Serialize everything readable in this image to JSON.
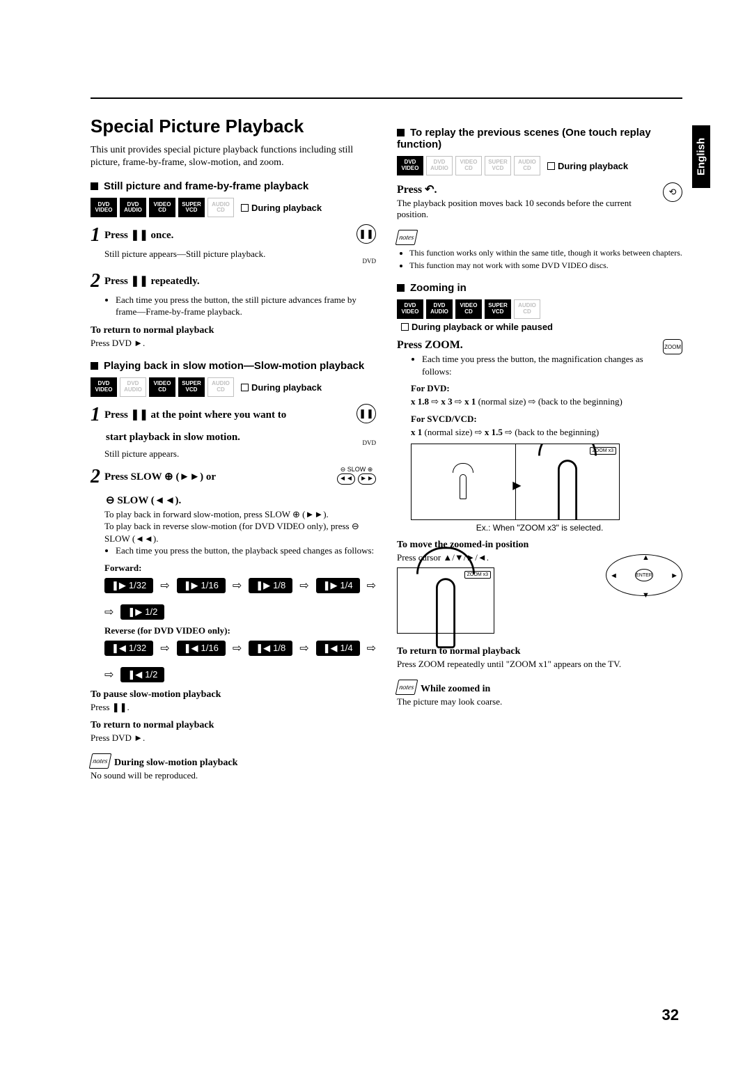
{
  "side_tab": "English",
  "page_number": "32",
  "title": "Special Picture Playback",
  "intro": "This unit provides special picture playback functions including still picture, frame-by-frame, slow-motion, and zoom.",
  "sections": {
    "still": {
      "heading": "Still picture and frame-by-frame playback",
      "context": "During playback",
      "badges": [
        {
          "t": "DVD",
          "b": "VIDEO",
          "on": true
        },
        {
          "t": "DVD",
          "b": "AUDIO",
          "on": true
        },
        {
          "t": "VIDEO",
          "b": "CD",
          "on": true
        },
        {
          "t": "SUPER",
          "b": "VCD",
          "on": true
        },
        {
          "t": "AUDIO",
          "b": "CD",
          "on": false
        }
      ],
      "step1": "Press ❚❚ once.",
      "step1_body": "Still picture appears—Still picture playback.",
      "step2": "Press ❚❚ repeatedly.",
      "step2_body": "Each time you press the button, the still picture advances frame by frame—Frame-by-frame playback.",
      "return_h": "To return to normal playback",
      "return_b": "Press DVD ►."
    },
    "slowmo": {
      "heading": "Playing back in slow motion—Slow-motion playback",
      "context": "During playback",
      "badges": [
        {
          "t": "DVD",
          "b": "VIDEO",
          "on": true
        },
        {
          "t": "DVD",
          "b": "AUDIO",
          "on": false
        },
        {
          "t": "VIDEO",
          "b": "CD",
          "on": true
        },
        {
          "t": "SUPER",
          "b": "VCD",
          "on": true
        },
        {
          "t": "AUDIO",
          "b": "CD",
          "on": false
        }
      ],
      "step1_a": "Press ❚❚ at the point where you want to",
      "step1_b": "start playback in slow motion.",
      "step1_body": "Still picture appears.",
      "step2_a": "Press SLOW ⊕ (►►) or",
      "step2_b": "⊖ SLOW (◄◄).",
      "step2_body_1": "To play back in forward slow-motion, press SLOW ⊕ (►►).",
      "step2_body_2": "To play back in reverse slow-motion (for DVD VIDEO only), press ⊖ SLOW (◄◄).",
      "step2_body_3": "Each time you press the button, the playback speed changes as follows:",
      "fwd_label": "Forward:",
      "fwd_values": [
        "1/32",
        "1/16",
        "1/8",
        "1/4",
        "1/2"
      ],
      "rev_label": "Reverse (for DVD VIDEO only):",
      "rev_values": [
        "1/32",
        "1/16",
        "1/8",
        "1/4",
        "1/2"
      ],
      "pause_h": "To pause slow-motion playback",
      "pause_b": "Press ❚❚.",
      "return_h": "To return to normal playback",
      "return_b": "Press DVD ►.",
      "note_h": "During slow-motion playback",
      "note_b": "No sound will be reproduced."
    },
    "replay": {
      "heading": "To replay the previous scenes (One touch replay function)",
      "context": "During playback",
      "badges": [
        {
          "t": "DVD",
          "b": "VIDEO",
          "on": true
        },
        {
          "t": "DVD",
          "b": "AUDIO",
          "on": false
        },
        {
          "t": "VIDEO",
          "b": "CD",
          "on": false
        },
        {
          "t": "SUPER",
          "b": "VCD",
          "on": false
        },
        {
          "t": "AUDIO",
          "b": "CD",
          "on": false
        }
      ],
      "press": "Press ↶.",
      "body": "The playback position moves back 10 seconds before the current position.",
      "notes": [
        "This function works only within the same title, though it works between chapters.",
        "This function may not work with some DVD VIDEO discs."
      ]
    },
    "zoom": {
      "heading": "Zooming in",
      "context": "During playback or while paused",
      "badges": [
        {
          "t": "DVD",
          "b": "VIDEO",
          "on": true
        },
        {
          "t": "DVD",
          "b": "AUDIO",
          "on": true
        },
        {
          "t": "VIDEO",
          "b": "CD",
          "on": true
        },
        {
          "t": "SUPER",
          "b": "VCD",
          "on": true
        },
        {
          "t": "AUDIO",
          "b": "CD",
          "on": false
        }
      ],
      "press": "Press ZOOM.",
      "body": "Each time you press the button, the magnification changes as follows:",
      "for_dvd_h": "For DVD:",
      "for_dvd_b": "x 1.8 ⇨ x 3 ⇨ x 1 (normal size) ⇨ (back to the beginning)",
      "for_svcd_h": "For SVCD/VCD:",
      "for_svcd_b": "x 1 (normal size) ⇨ x 1.5 ⇨ (back to the beginning)",
      "zoom_tag": "ZOOM x3",
      "caption": "Ex.: When \"ZOOM x3\" is selected.",
      "move_h": "To move the zoomed-in position",
      "move_b": "Press cursor ▲/▼/►/◄.",
      "return_h": "To return to normal playback",
      "return_b": "Press ZOOM repeatedly until \"ZOOM x1\" appears on the TV.",
      "note_h": "While zoomed in",
      "note_b": "The picture may look coarse.",
      "enter": "ENTER",
      "zoom_btn": "ZOOM"
    }
  }
}
